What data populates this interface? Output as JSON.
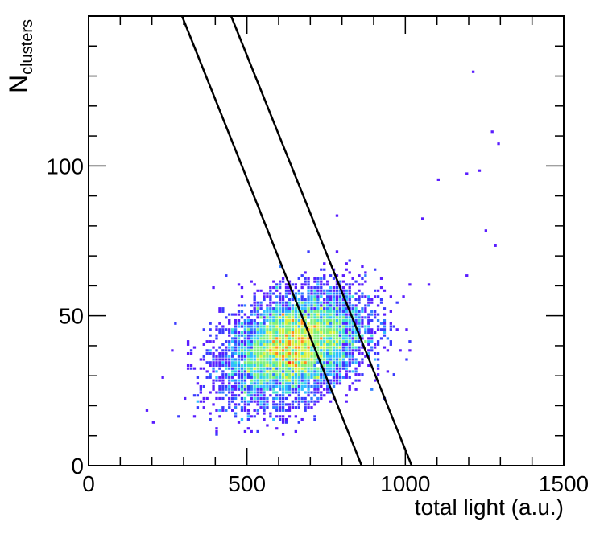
{
  "chart_data": {
    "type": "heatmap",
    "title": "",
    "xlabel": "total light (a.u.)",
    "ylabel_main": "N",
    "ylabel_sub": "clusters",
    "xlim": [
      0,
      1500
    ],
    "ylim": [
      0,
      150
    ],
    "x_ticks": [
      {
        "value": 0,
        "label": "0"
      },
      {
        "value": 500,
        "label": "500"
      },
      {
        "value": 1000,
        "label": "1000"
      },
      {
        "value": 1500,
        "label": "1500"
      }
    ],
    "y_ticks": [
      {
        "value": 0,
        "label": "0"
      },
      {
        "value": 50,
        "label": "50"
      },
      {
        "value": 100,
        "label": "100"
      }
    ],
    "grid": false,
    "colormap": [
      "#5a1dff",
      "#3b3bff",
      "#2f7dff",
      "#2fbfff",
      "#3fe0d0",
      "#7ef07a",
      "#d8f040",
      "#ff8c1a",
      "#ff2020"
    ],
    "bin_width": 10,
    "bin_height": 1,
    "cluster": {
      "x_center": 650,
      "y_center": 40,
      "x_sigma": 110,
      "y_sigma": 9,
      "correlation": 0.35
    },
    "outliers": [
      {
        "x": 1210,
        "y": 131
      },
      {
        "x": 1270,
        "y": 111
      },
      {
        "x": 1290,
        "y": 107
      },
      {
        "x": 1100,
        "y": 95
      },
      {
        "x": 1190,
        "y": 97
      },
      {
        "x": 1230,
        "y": 98
      },
      {
        "x": 1050,
        "y": 82
      },
      {
        "x": 1250,
        "y": 78
      },
      {
        "x": 1280,
        "y": 73
      },
      {
        "x": 1190,
        "y": 63
      },
      {
        "x": 1070,
        "y": 60
      },
      {
        "x": 780,
        "y": 83
      },
      {
        "x": 200,
        "y": 14
      },
      {
        "x": 180,
        "y": 18
      },
      {
        "x": 1010,
        "y": 38
      },
      {
        "x": 1000,
        "y": 45
      },
      {
        "x": 420,
        "y": 18
      },
      {
        "x": 400,
        "y": 12
      }
    ],
    "lines": [
      {
        "x1": 295,
        "y1": 150,
        "x2": 862,
        "y2": 0
      },
      {
        "x1": 450,
        "y1": 150,
        "x2": 1020,
        "y2": 0
      }
    ]
  }
}
